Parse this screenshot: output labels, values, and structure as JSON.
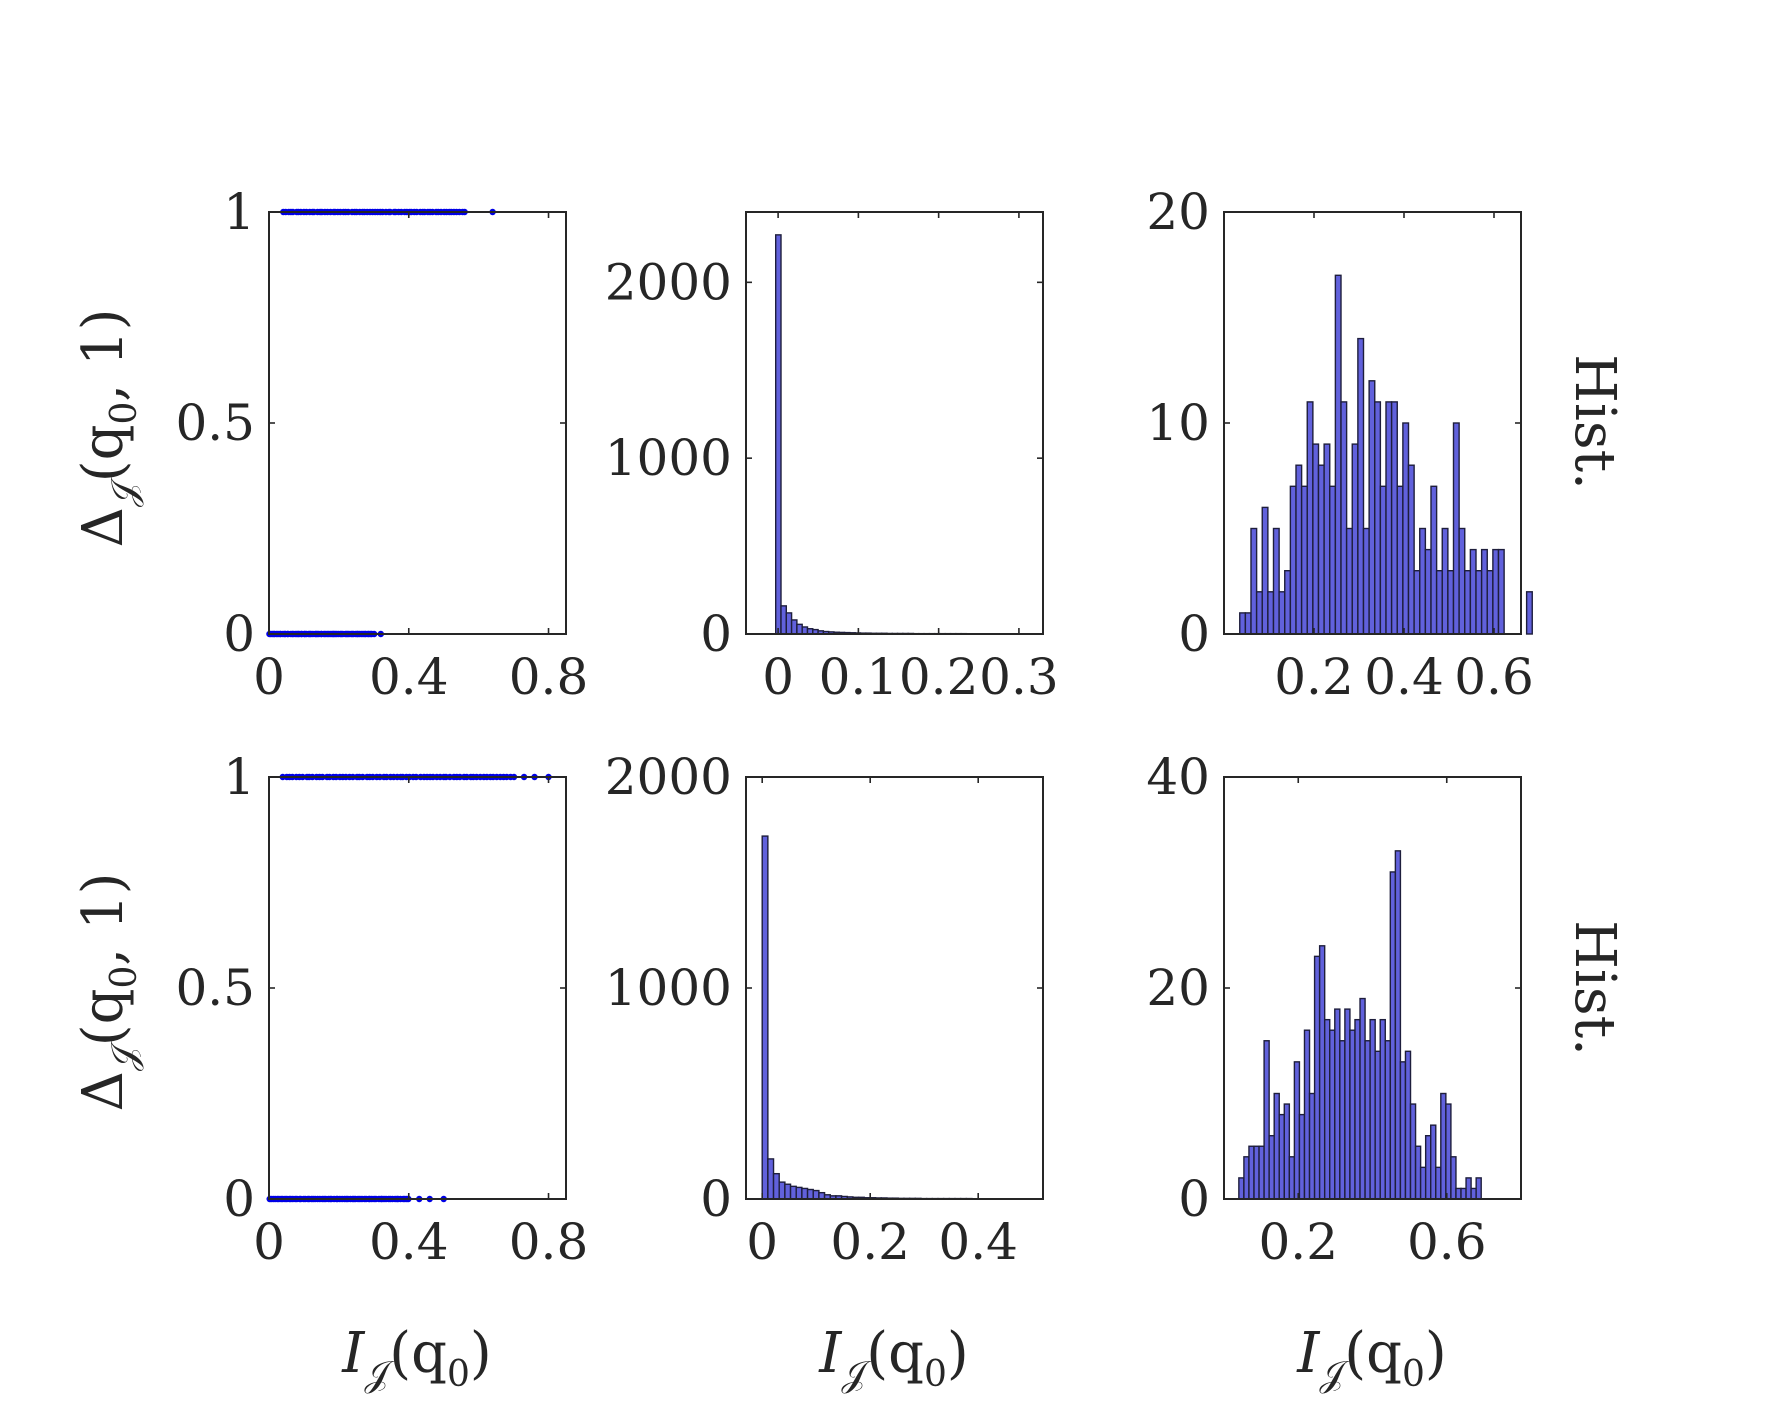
{
  "labels": {
    "ylabel_row": "Δ𝒥(q0, 1)",
    "ylabel_row_parts": {
      "base": "Δ",
      "sub": "𝒥",
      "rest": "(q",
      "sub2": "0",
      "tail": ", 1)"
    },
    "xlabel": "I𝒥(q0)",
    "xlabel_parts": {
      "base": "I",
      "sub": "𝒥",
      "rest": "(q",
      "sub2": "0",
      "tail": ")"
    },
    "row_right_label": "Hist."
  },
  "colors": {
    "points": "#0000e6",
    "bars": "#6161dc",
    "bar_edge": "#1e1e3c",
    "axes": "#262626"
  },
  "chart_data": [
    {
      "id": "r1c1",
      "type": "scatter",
      "xlim": [
        0,
        0.85
      ],
      "ylim": [
        0,
        1
      ],
      "xticks": [
        0,
        0.4,
        0.8
      ],
      "xtick_labels": [
        "0",
        "0.4",
        "0.8"
      ],
      "yticks": [
        0,
        0.5,
        1
      ],
      "ytick_labels": [
        "0",
        "0.5",
        "1"
      ],
      "ylabel": "Δ𝒥(q0, 1)",
      "points": {
        "y1_x_range": [
          0.04,
          0.56
        ],
        "y1_extra_x": [
          0.64
        ],
        "y0_x_range": [
          0.0,
          0.3
        ],
        "y0_extra_x": [
          0.32
        ]
      }
    },
    {
      "id": "r1c2",
      "type": "bar",
      "xlim": [
        -0.04,
        0.33
      ],
      "ylim": [
        0,
        2400
      ],
      "xticks": [
        0,
        0.1,
        0.2,
        0.3
      ],
      "xtick_labels": [
        "0",
        "0.1",
        "0.2",
        "0.3"
      ],
      "yticks": [
        0,
        1000,
        2000
      ],
      "ytick_labels": [
        "0",
        "1000",
        "2000"
      ],
      "bin_start": -0.003,
      "bin_width": 0.0066,
      "values": [
        2270,
        160,
        120,
        80,
        55,
        40,
        30,
        25,
        18,
        14,
        12,
        10,
        9,
        8,
        7,
        6,
        5,
        5,
        4,
        4,
        4,
        3,
        3,
        3,
        3,
        3,
        2,
        2,
        2,
        2,
        2,
        2,
        2,
        2,
        2,
        2,
        1,
        1,
        1,
        1,
        1,
        1,
        1,
        1,
        1,
        1,
        1,
        1
      ]
    },
    {
      "id": "r1c3",
      "type": "bar",
      "xlim": [
        0,
        0.66
      ],
      "ylim": [
        0,
        20
      ],
      "xticks": [
        0.2,
        0.4,
        0.6
      ],
      "xtick_labels": [
        "0.2",
        "0.4",
        "0.6"
      ],
      "yticks": [
        0,
        10,
        20
      ],
      "ytick_labels": [
        "0",
        "10",
        "20"
      ],
      "bin_start": 0.035,
      "bin_width": 0.0125,
      "values": [
        1,
        1,
        5,
        2,
        6,
        2,
        5,
        2,
        3,
        7,
        8,
        7,
        11,
        9,
        8,
        9,
        7,
        17,
        11,
        5,
        9,
        14,
        5,
        12,
        11,
        7,
        11,
        11,
        7,
        10,
        8,
        3,
        5,
        4,
        7,
        3,
        5,
        3,
        10,
        5,
        3,
        4,
        3,
        4,
        3,
        4,
        4,
        0,
        0,
        0,
        0,
        2
      ]
    },
    {
      "id": "r2c1",
      "type": "scatter",
      "xlim": [
        0,
        0.85
      ],
      "ylim": [
        0,
        1
      ],
      "xticks": [
        0,
        0.4,
        0.8
      ],
      "xtick_labels": [
        "0",
        "0.4",
        "0.8"
      ],
      "yticks": [
        0,
        0.5,
        1
      ],
      "ytick_labels": [
        "0",
        "0.5",
        "1"
      ],
      "ylabel": "Δ𝒥(q0, 1)",
      "xlabel": "I𝒥(q0)",
      "points": {
        "y1_x_range": [
          0.04,
          0.7
        ],
        "y1_extra_x": [
          0.73,
          0.76,
          0.8
        ],
        "y0_x_range": [
          0.0,
          0.4
        ],
        "y0_extra_x": [
          0.43,
          0.46,
          0.5
        ]
      }
    },
    {
      "id": "r2c2",
      "type": "bar",
      "xlim": [
        -0.03,
        0.52
      ],
      "ylim": [
        0,
        2000
      ],
      "xticks": [
        0,
        0.2,
        0.4
      ],
      "xtick_labels": [
        "0",
        "0.2",
        "0.4"
      ],
      "yticks": [
        0,
        1000,
        2000
      ],
      "ytick_labels": [
        "0",
        "1000",
        "2000"
      ],
      "xlabel": "I𝒥(q0)",
      "bin_start": 0.0,
      "bin_width": 0.0105,
      "values": [
        1720,
        190,
        120,
        80,
        70,
        60,
        55,
        50,
        45,
        40,
        30,
        20,
        15,
        15,
        12,
        10,
        8,
        8,
        6,
        6,
        5,
        5,
        4,
        4,
        3,
        3,
        3,
        3,
        2,
        2,
        2,
        2,
        2,
        2,
        2,
        2,
        2,
        1,
        1,
        1,
        1,
        1,
        1,
        1,
        1,
        1
      ]
    },
    {
      "id": "r2c3",
      "type": "bar",
      "xlim": [
        0,
        0.8
      ],
      "ylim": [
        0,
        40
      ],
      "xticks": [
        0.2,
        0.6
      ],
      "xtick_labels": [
        "0.2",
        "0.6"
      ],
      "yticks": [
        0,
        20,
        40
      ],
      "ytick_labels": [
        "0",
        "20",
        "40"
      ],
      "xlabel": "I𝒥(q0)",
      "bin_start": 0.04,
      "bin_width": 0.0136,
      "values": [
        2,
        4,
        5,
        5,
        5,
        15,
        6,
        10,
        8,
        9,
        4,
        13,
        8,
        16,
        10,
        23,
        24,
        17,
        16,
        18,
        15,
        18,
        16,
        17,
        19,
        15,
        17,
        14,
        17,
        15,
        31,
        33,
        13,
        14,
        9,
        5,
        3,
        6,
        7,
        3,
        10,
        9,
        4,
        1,
        1,
        2,
        1,
        2
      ]
    }
  ]
}
